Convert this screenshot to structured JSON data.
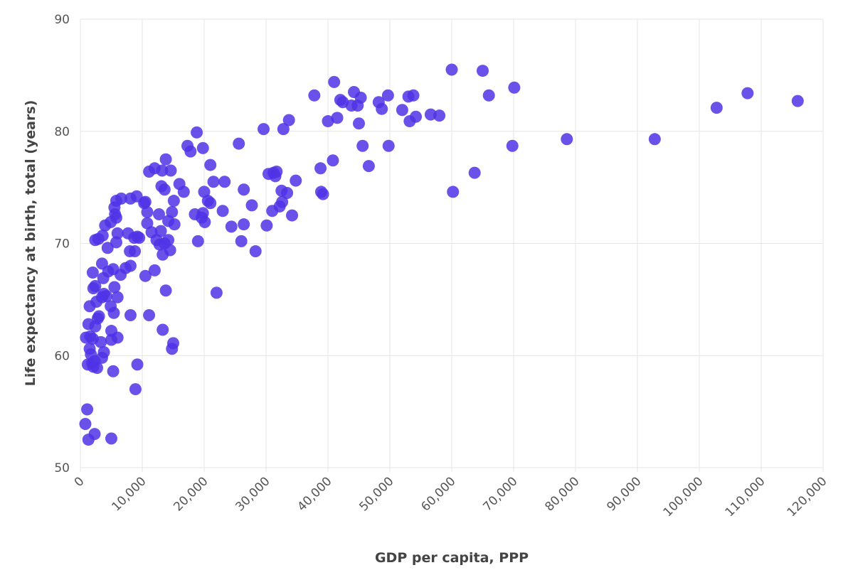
{
  "chart_data": {
    "type": "scatter",
    "xlabel": "GDP per capita, PPP",
    "ylabel": "Life expectancy at birth, total (years)",
    "xlim": [
      0,
      120000
    ],
    "ylim": [
      50,
      90
    ],
    "x_ticks": [
      0,
      10000,
      20000,
      30000,
      40000,
      50000,
      60000,
      70000,
      80000,
      90000,
      100000,
      110000,
      120000
    ],
    "x_tick_labels": [
      "0",
      "10,000",
      "20,000",
      "30,000",
      "40,000",
      "50,000",
      "60,000",
      "70,000",
      "80,000",
      "90,000",
      "100,000",
      "110,000",
      "120,000"
    ],
    "y_ticks": [
      50,
      60,
      70,
      80,
      90
    ],
    "y_tick_labels": [
      "50",
      "60",
      "70",
      "80",
      "90"
    ],
    "grid": true,
    "point_color": "#4f32e6",
    "points": [
      [
        800,
        53.9
      ],
      [
        1300,
        52.5
      ],
      [
        2300,
        53.0
      ],
      [
        5000,
        52.6
      ],
      [
        1100,
        55.2
      ],
      [
        5300,
        58.6
      ],
      [
        8900,
        57.0
      ],
      [
        9200,
        59.2
      ],
      [
        900,
        61.6
      ],
      [
        1200,
        59.2
      ],
      [
        1500,
        60.6
      ],
      [
        1700,
        60.1
      ],
      [
        1900,
        59.3
      ],
      [
        2100,
        59.0
      ],
      [
        2300,
        59.5
      ],
      [
        2700,
        58.9
      ],
      [
        1300,
        62.8
      ],
      [
        1600,
        61.7
      ],
      [
        2000,
        61.5
      ],
      [
        2400,
        62.6
      ],
      [
        2800,
        63.3
      ],
      [
        3000,
        63.5
      ],
      [
        3300,
        61.2
      ],
      [
        3500,
        59.8
      ],
      [
        3800,
        60.3
      ],
      [
        1500,
        64.4
      ],
      [
        2600,
        64.8
      ],
      [
        3500,
        65.2
      ],
      [
        3800,
        65.5
      ],
      [
        4200,
        65.3
      ],
      [
        4900,
        64.4
      ],
      [
        5400,
        63.8
      ],
      [
        6000,
        65.2
      ],
      [
        2100,
        66.0
      ],
      [
        2400,
        66.2
      ],
      [
        3700,
        66.9
      ],
      [
        4500,
        67.5
      ],
      [
        5300,
        67.7
      ],
      [
        5500,
        66.1
      ],
      [
        6500,
        67.2
      ],
      [
        7300,
        67.8
      ],
      [
        8100,
        68.0
      ],
      [
        5000,
        61.4
      ],
      [
        5000,
        62.2
      ],
      [
        6000,
        61.6
      ],
      [
        8100,
        63.6
      ],
      [
        11100,
        63.6
      ],
      [
        13300,
        62.3
      ],
      [
        14800,
        60.6
      ],
      [
        15000,
        61.1
      ],
      [
        2000,
        67.4
      ],
      [
        3500,
        68.2
      ],
      [
        4400,
        69.6
      ],
      [
        5800,
        70.1
      ],
      [
        6000,
        70.9
      ],
      [
        7700,
        70.9
      ],
      [
        8000,
        69.3
      ],
      [
        8800,
        69.3
      ],
      [
        8700,
        70.5
      ],
      [
        9200,
        70.6
      ],
      [
        9500,
        70.5
      ],
      [
        2400,
        70.3
      ],
      [
        2900,
        70.4
      ],
      [
        3600,
        70.7
      ],
      [
        4000,
        71.6
      ],
      [
        4900,
        71.9
      ],
      [
        5600,
        72.6
      ],
      [
        5800,
        72.3
      ],
      [
        5500,
        73.2
      ],
      [
        5800,
        73.8
      ],
      [
        6600,
        74.0
      ],
      [
        8100,
        74.0
      ],
      [
        9100,
        74.2
      ],
      [
        10300,
        73.6
      ],
      [
        10800,
        72.8
      ],
      [
        10800,
        71.8
      ],
      [
        11500,
        71.0
      ],
      [
        12300,
        70.3
      ],
      [
        12800,
        69.9
      ],
      [
        13000,
        71.1
      ],
      [
        13300,
        69.0
      ],
      [
        13600,
        70.0
      ],
      [
        14200,
        70.3
      ],
      [
        14500,
        69.4
      ],
      [
        12000,
        67.6
      ],
      [
        10500,
        67.1
      ],
      [
        13800,
        65.8
      ],
      [
        22000,
        65.6
      ],
      [
        11100,
        76.4
      ],
      [
        12000,
        76.7
      ],
      [
        13200,
        76.5
      ],
      [
        13800,
        77.5
      ],
      [
        14600,
        76.5
      ],
      [
        13100,
        75.1
      ],
      [
        13600,
        74.8
      ],
      [
        15100,
        73.8
      ],
      [
        16000,
        75.3
      ],
      [
        16700,
        74.6
      ],
      [
        14200,
        72.0
      ],
      [
        14800,
        72.8
      ],
      [
        15200,
        71.7
      ],
      [
        12700,
        72.6
      ],
      [
        10500,
        73.7
      ],
      [
        18500,
        72.6
      ],
      [
        19600,
        72.3
      ],
      [
        20100,
        71.9
      ],
      [
        19800,
        72.7
      ],
      [
        19000,
        70.2
      ],
      [
        20600,
        73.8
      ],
      [
        21000,
        73.6
      ],
      [
        20000,
        74.6
      ],
      [
        21500,
        75.5
      ],
      [
        23000,
        72.9
      ],
      [
        23300,
        75.5
      ],
      [
        17300,
        78.7
      ],
      [
        17800,
        78.2
      ],
      [
        18800,
        79.9
      ],
      [
        19800,
        78.5
      ],
      [
        21000,
        77.0
      ],
      [
        24400,
        71.5
      ],
      [
        26000,
        70.2
      ],
      [
        26400,
        71.7
      ],
      [
        26400,
        74.8
      ],
      [
        27700,
        73.4
      ],
      [
        28300,
        69.3
      ],
      [
        30100,
        71.6
      ],
      [
        25600,
        78.9
      ],
      [
        29600,
        80.2
      ],
      [
        30400,
        76.2
      ],
      [
        31200,
        76.3
      ],
      [
        31500,
        76.0
      ],
      [
        31700,
        76.4
      ],
      [
        32200,
        73.3
      ],
      [
        32600,
        73.7
      ],
      [
        32500,
        74.7
      ],
      [
        33400,
        74.5
      ],
      [
        34200,
        72.5
      ],
      [
        34800,
        75.6
      ],
      [
        31000,
        72.9
      ],
      [
        32800,
        80.2
      ],
      [
        33700,
        81.0
      ],
      [
        37800,
        83.2
      ],
      [
        38800,
        76.7
      ],
      [
        38900,
        74.6
      ],
      [
        39200,
        74.4
      ],
      [
        40800,
        77.4
      ],
      [
        40000,
        80.9
      ],
      [
        41500,
        81.2
      ],
      [
        41000,
        84.4
      ],
      [
        42000,
        82.8
      ],
      [
        42400,
        82.6
      ],
      [
        43800,
        82.3
      ],
      [
        44200,
        83.5
      ],
      [
        44800,
        82.3
      ],
      [
        45300,
        83.0
      ],
      [
        45600,
        78.7
      ],
      [
        45000,
        80.7
      ],
      [
        46600,
        76.9
      ],
      [
        48200,
        82.6
      ],
      [
        48700,
        82.0
      ],
      [
        49700,
        83.2
      ],
      [
        49800,
        78.7
      ],
      [
        52000,
        81.9
      ],
      [
        53000,
        83.1
      ],
      [
        53200,
        80.9
      ],
      [
        53800,
        83.2
      ],
      [
        54200,
        81.3
      ],
      [
        56600,
        81.5
      ],
      [
        58000,
        81.4
      ],
      [
        60000,
        85.5
      ],
      [
        60200,
        74.6
      ],
      [
        63700,
        76.3
      ],
      [
        65000,
        85.4
      ],
      [
        66000,
        83.2
      ],
      [
        69800,
        78.7
      ],
      [
        70100,
        83.9
      ],
      [
        78600,
        79.3
      ],
      [
        92800,
        79.3
      ],
      [
        102800,
        82.1
      ],
      [
        107800,
        83.4
      ],
      [
        115900,
        82.7
      ]
    ]
  }
}
